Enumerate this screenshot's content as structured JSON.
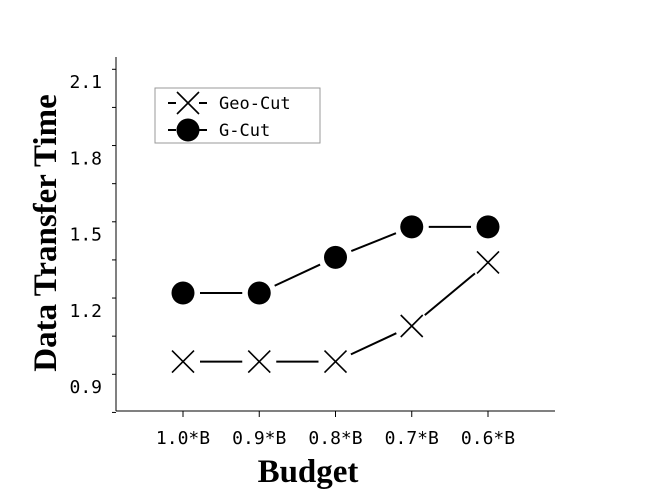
{
  "chart_data": {
    "type": "line",
    "xlabel": "Budget",
    "ylabel": "Data Transfer Time",
    "categories": [
      "1.0*B",
      "0.9*B",
      "0.8*B",
      "0.7*B",
      "0.6*B"
    ],
    "ylim": [
      0.8,
      2.2
    ],
    "yticks": [
      0.9,
      1.2,
      1.5,
      1.8,
      2.1
    ],
    "ytick_labels": [
      "0.9",
      "1.2",
      "1.5",
      "1.8",
      "2.1"
    ],
    "grid": false,
    "legend_position": "top-left",
    "series": [
      {
        "name": "Geo-Cut",
        "marker": "x",
        "color": "#000000",
        "values": [
          1.0,
          1.0,
          1.0,
          1.14,
          1.39
        ]
      },
      {
        "name": "G-Cut",
        "marker": "filled-circle",
        "color": "#000000",
        "values": [
          1.27,
          1.27,
          1.41,
          1.53,
          1.53
        ]
      }
    ]
  }
}
